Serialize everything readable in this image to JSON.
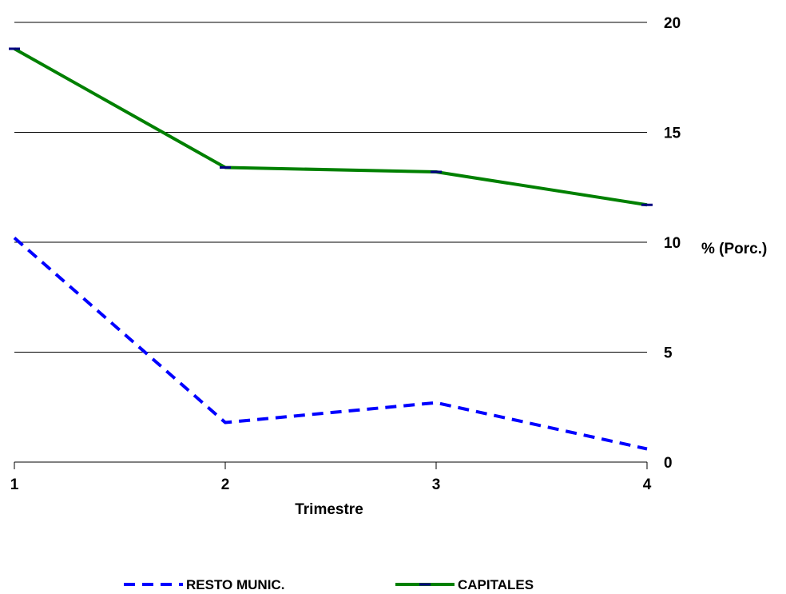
{
  "chart_data": {
    "type": "line",
    "x": [
      1,
      2,
      3,
      4
    ],
    "xlabel": "Trimestre",
    "ylabel": "% (Porc.)",
    "ylim": [
      0,
      20
    ],
    "yticks": [
      0,
      5,
      10,
      15,
      20
    ],
    "y_axis_side": "right",
    "grid": "horizontal",
    "legend_position": "bottom",
    "series": [
      {
        "name": "RESTO MUNIC.",
        "values": [
          10.2,
          1.8,
          2.7,
          0.6
        ],
        "color": "#0000ff",
        "style": "dashed"
      },
      {
        "name": "CAPITALES",
        "values": [
          18.8,
          13.4,
          13.2,
          11.7
        ],
        "color": "#008000",
        "style": "solid",
        "marker_color": "#000080"
      }
    ]
  }
}
